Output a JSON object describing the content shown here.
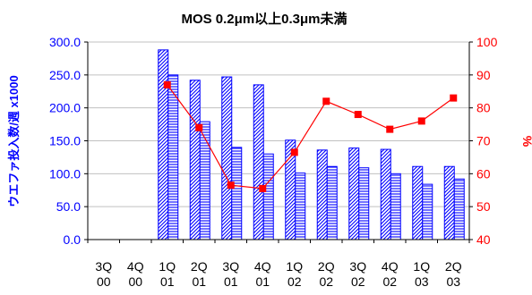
{
  "chart_data": {
    "type": "bar",
    "title": "MOS 0.2μm以上0.3μm未満",
    "categories": [
      [
        "3Q",
        "00"
      ],
      [
        "4Q",
        "00"
      ],
      [
        "1Q",
        "01"
      ],
      [
        "2Q",
        "01"
      ],
      [
        "3Q",
        "01"
      ],
      [
        "4Q",
        "01"
      ],
      [
        "1Q",
        "02"
      ],
      [
        "2Q",
        "02"
      ],
      [
        "3Q",
        "02"
      ],
      [
        "4Q",
        "02"
      ],
      [
        "1Q",
        "03"
      ],
      [
        "2Q",
        "03"
      ]
    ],
    "ylabel_left": "ウエファ投入数/週 x1000",
    "ylabel_right": "%",
    "ylim_left": [
      0,
      300
    ],
    "ylim_right": [
      40,
      100
    ],
    "y_ticks_left": [
      "0.0",
      "50.0",
      "100.0",
      "150.0",
      "200.0",
      "250.0",
      "300.0"
    ],
    "y_ticks_right": [
      "40",
      "50",
      "60",
      "70",
      "80",
      "90",
      "100"
    ],
    "series": [
      {
        "pattern": "diagonal-hatch",
        "axis": "left",
        "values": [
          null,
          null,
          288,
          242,
          247,
          235,
          151,
          136,
          139,
          137,
          111,
          111
        ]
      },
      {
        "pattern": "horizontal-hatch",
        "axis": "left",
        "values": [
          null,
          null,
          250,
          179,
          140,
          130,
          101,
          111,
          109,
          100,
          84,
          92
        ]
      },
      {
        "type": "line",
        "axis": "right",
        "color": "#ff0000",
        "marker": "square",
        "values": [
          null,
          null,
          87,
          74,
          56.5,
          55.5,
          66.5,
          82,
          78,
          73.5,
          76,
          83
        ]
      }
    ],
    "colors": {
      "bar": "#0000ff",
      "line": "#ff0000",
      "axis": "#000000",
      "grid": "#c0c0c0"
    },
    "grid": true
  }
}
